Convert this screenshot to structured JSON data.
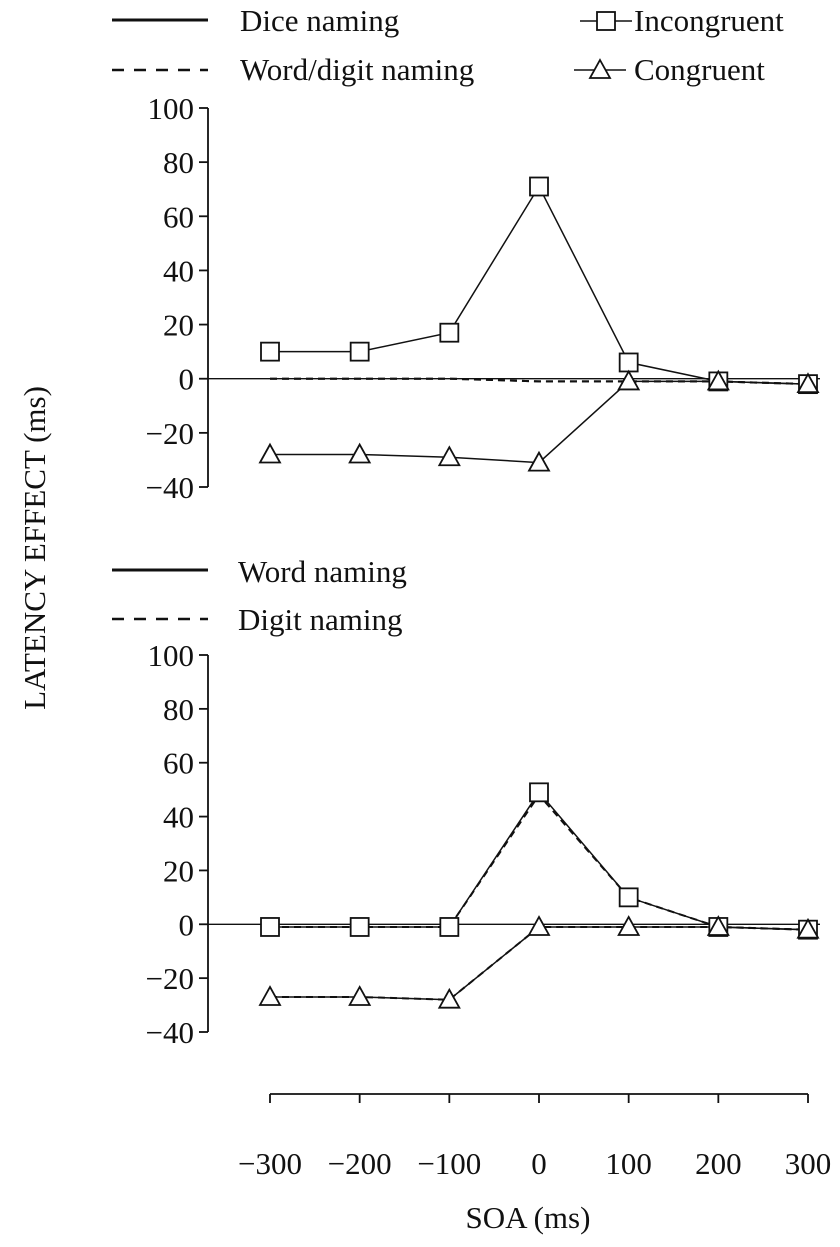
{
  "figure": {
    "ylabel": "LATENCY EFFECT (ms)",
    "xlabel": "SOA (ms)",
    "x_ticks": [
      -300,
      -200,
      -100,
      0,
      100,
      200,
      300
    ],
    "x_tick_labels": [
      "−300",
      "−200",
      "−100",
      "0",
      "100",
      "200",
      "300"
    ],
    "y_ticks": [
      100,
      80,
      60,
      40,
      20,
      0,
      -20,
      -40
    ],
    "y_tick_labels": [
      "100",
      "80",
      "60",
      "40",
      "20",
      "0",
      "−20",
      "−40"
    ]
  },
  "legend_top": {
    "solid_label": "Dice naming",
    "dashed_label": "Word/digit naming",
    "square_label": "Incongruent",
    "triangle_label": "Congruent"
  },
  "legend_bottom": {
    "solid_label": "Word naming",
    "dashed_label": "Digit naming"
  },
  "chart_data": [
    {
      "type": "line",
      "panel": "top",
      "xlabel": "SOA (ms)",
      "ylabel": "LATENCY EFFECT (ms)",
      "x": [
        -300,
        -200,
        -100,
        0,
        100,
        200,
        300
      ],
      "ylim": [
        -40,
        100
      ],
      "series": [
        {
          "name": "Dice naming",
          "condition": "Incongruent",
          "line": "solid",
          "marker": "square",
          "values": [
            10,
            10,
            17,
            71,
            6,
            -1,
            -2
          ]
        },
        {
          "name": "Dice naming",
          "condition": "Congruent",
          "line": "solid",
          "marker": "triangle",
          "values": [
            -28,
            -28,
            -29,
            -31,
            -1,
            -1,
            -2
          ]
        },
        {
          "name": "Word/digit naming",
          "condition": "Incongruent",
          "line": "dashed",
          "marker": "square",
          "values": [
            0,
            0,
            0,
            -1,
            -1,
            -1,
            -2
          ]
        },
        {
          "name": "Word/digit naming",
          "condition": "Congruent",
          "line": "dashed",
          "marker": "triangle",
          "values": [
            0,
            0,
            0,
            -1,
            -1,
            -1,
            -2
          ]
        }
      ]
    },
    {
      "type": "line",
      "panel": "bottom",
      "xlabel": "SOA (ms)",
      "ylabel": "LATENCY EFFECT (ms)",
      "x": [
        -300,
        -200,
        -100,
        0,
        100,
        200,
        300
      ],
      "ylim": [
        -40,
        100
      ],
      "series": [
        {
          "name": "Word naming",
          "condition": "Incongruent",
          "line": "solid",
          "marker": "square",
          "values": [
            -1,
            -1,
            -1,
            49,
            10,
            -1,
            -2
          ]
        },
        {
          "name": "Word naming",
          "condition": "Congruent",
          "line": "solid",
          "marker": "triangle",
          "values": [
            -27,
            -27,
            -28,
            -1,
            -1,
            -1,
            -2
          ]
        },
        {
          "name": "Digit naming",
          "condition": "Incongruent",
          "line": "dashed",
          "marker": "square",
          "values": [
            -1,
            -1,
            -1,
            48,
            10,
            -1,
            -2
          ]
        },
        {
          "name": "Digit naming",
          "condition": "Congruent",
          "line": "dashed",
          "marker": "triangle",
          "values": [
            -27,
            -27,
            -28,
            -1,
            -1,
            -1,
            -2
          ]
        }
      ]
    }
  ]
}
